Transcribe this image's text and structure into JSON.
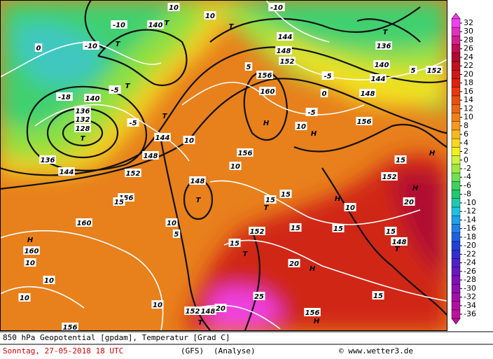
{
  "map": {
    "labels": [
      "-10",
      "140",
      "T",
      "10",
      "10",
      "-10",
      "T",
      "144",
      "148",
      "152",
      "T",
      "136",
      "140",
      "144",
      "152",
      "0",
      "148",
      "156",
      "-5",
      "H",
      "160",
      "156",
      "H",
      "10",
      "T",
      "128",
      "132",
      "136",
      "-18",
      "140",
      "144",
      "136",
      "148",
      "152",
      "144",
      "T",
      "H",
      "15",
      "152",
      "H",
      "20",
      "148",
      "T",
      "156",
      "10",
      "15",
      "T",
      "15",
      "H",
      "10",
      "15",
      "15",
      "152",
      "T",
      "15",
      "20",
      "H",
      "T",
      "148",
      "15",
      "15",
      "25",
      "156",
      "H",
      "T",
      "152",
      "148",
      "20",
      "10",
      "10",
      "10",
      "H",
      "160",
      "10",
      "160",
      "156",
      "15",
      "10",
      "10",
      "5",
      "156",
      "-5",
      "-5",
      "5",
      "-5",
      "5",
      "0",
      "-10",
      "T",
      "T"
    ]
  },
  "colorbar": {
    "ticks": [
      32,
      30,
      28,
      26,
      24,
      22,
      20,
      18,
      16,
      14,
      12,
      10,
      8,
      6,
      4,
      2,
      0,
      -2,
      -4,
      -6,
      -8,
      -10,
      -12,
      -14,
      -16,
      -18,
      -20,
      -22,
      -24,
      -26,
      -28,
      -30,
      -32,
      -34,
      -36
    ],
    "colors": [
      "#f040f0",
      "#e030c0",
      "#d02090",
      "#c01050",
      "#b00830",
      "#c01020",
      "#d01818",
      "#e02010",
      "#e83810",
      "#e85010",
      "#e86818",
      "#f08018",
      "#f89820",
      "#f8b820",
      "#f8d820",
      "#f0f020",
      "#d0f040",
      "#a0e840",
      "#70e050",
      "#40d060",
      "#20c870",
      "#20c8b0",
      "#20c0e0",
      "#20a0e8",
      "#2080e8",
      "#2060e0",
      "#2040d8",
      "#3030d0",
      "#5020c8",
      "#6818c0",
      "#8010b8",
      "#9010b0",
      "#a010a8",
      "#b010a0",
      "#c010a0"
    ]
  },
  "footer": {
    "title": "850 hPa Geopotential [gpdam], Temperatur [Grad C]",
    "date": "Sonntag, 27-05-2018  18 UTC",
    "model": "(GFS)",
    "run": "(Analyse)",
    "credit": "© www.wetter3.de"
  }
}
